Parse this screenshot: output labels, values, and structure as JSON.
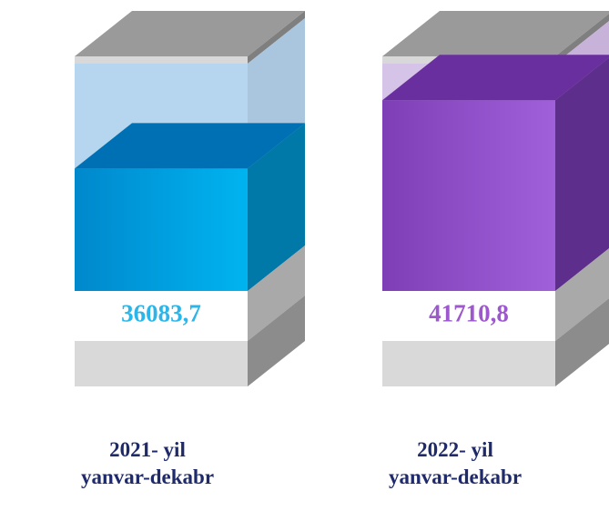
{
  "chart_data": {
    "type": "bar3d",
    "categories": [
      "2021- yil\nyanvar-dekabr",
      "2022- yil\nyanvar-dekabr"
    ],
    "values": [
      36083.7,
      41710.8
    ],
    "value_labels": [
      "36083,7",
      "41710,8"
    ],
    "colors": [
      "#00a6e6",
      "#9150cc"
    ],
    "ylim": [
      26000,
      42700
    ]
  }
}
